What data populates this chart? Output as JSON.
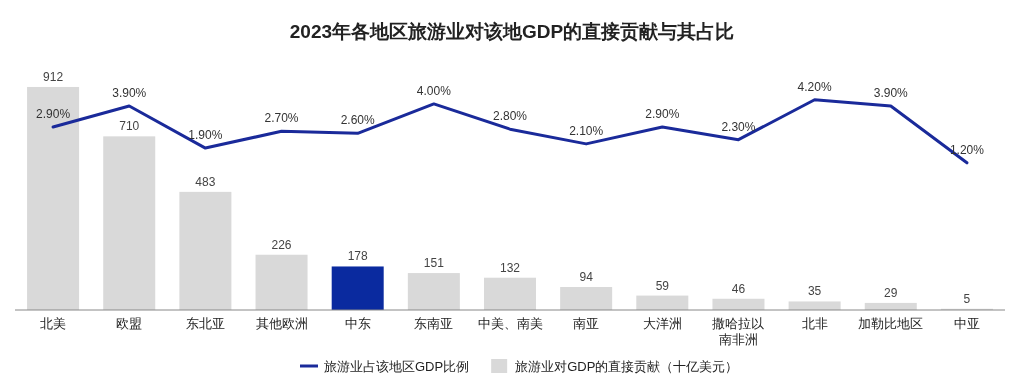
{
  "chart_data": {
    "type": "bar",
    "title": "2023年各地区旅游业对该地GDP的直接贡献与其占比",
    "categories": [
      "北美",
      "欧盟",
      "东北亚",
      "其他欧洲",
      "中东",
      "东南亚",
      "中美、南美",
      "南亚",
      "大洋洲",
      "撒哈拉以南非洲",
      "北非",
      "加勒比地区",
      "中亚"
    ],
    "ylim": [
      0,
      920
    ],
    "y2lim": [
      -5.8,
      4.9
    ],
    "tick_labels": "x",
    "legend": "bottom",
    "data_labels": true,
    "series": [
      {
        "name": "旅游业对GDP的直接贡献（十亿美元）",
        "color": "#d9d9d9",
        "colors": [
          "#d9d9d9",
          "#d9d9d9",
          "#d9d9d9",
          "#d9d9d9",
          "#0a2a9f",
          "#d9d9d9",
          "#d9d9d9",
          "#d9d9d9",
          "#d9d9d9",
          "#d9d9d9",
          "#d9d9d9",
          "#d9d9d9",
          "#d9d9d9"
        ],
        "values": [
          912,
          710,
          483,
          226,
          178,
          151,
          132,
          94,
          59,
          46,
          35,
          29,
          5
        ]
      },
      {
        "type": "line",
        "axis": "y2",
        "name": "旅游业占该地区GDP比例",
        "color": "#1a2a9a",
        "values": [
          2.9,
          3.9,
          1.9,
          2.7,
          2.6,
          4.0,
          2.8,
          2.1,
          2.9,
          2.3,
          4.2,
          3.9,
          1.2
        ],
        "value_labels": [
          "2.90%",
          "3.90%",
          "1.90%",
          "2.70%",
          "2.60%",
          "4.00%",
          "2.80%",
          "2.10%",
          "2.90%",
          "2.30%",
          "4.20%",
          "3.90%",
          "1.20%"
        ]
      }
    ]
  }
}
